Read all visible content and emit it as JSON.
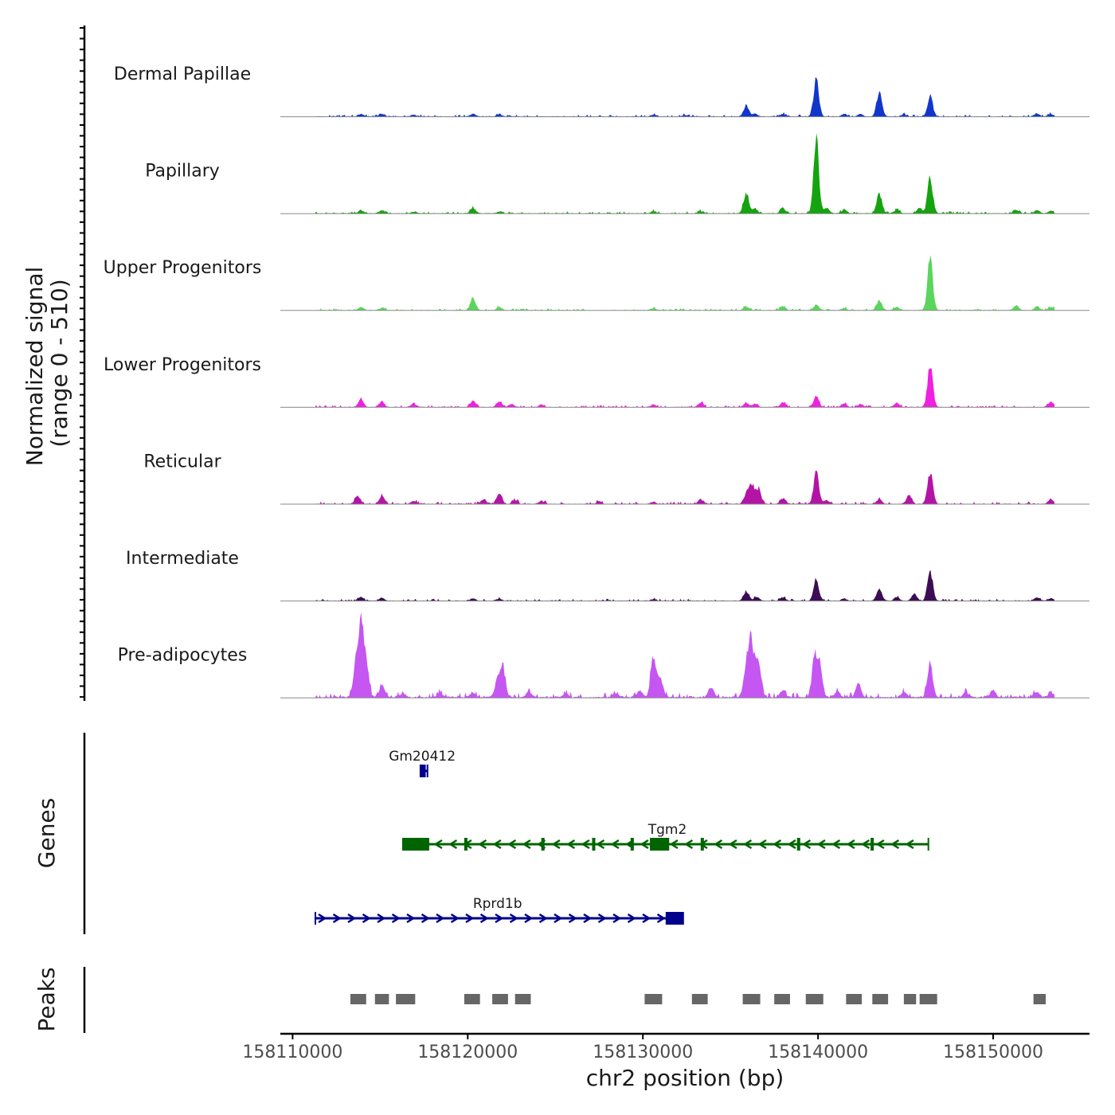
{
  "chart_data": {
    "type": "area",
    "title": "",
    "ylabel_line1": "Normalized signal",
    "ylabel_line2": "(range 0 - 510)",
    "xlabel": "chr2 position (bp)",
    "xlim": [
      158109300,
      158155500
    ],
    "x_ticks": [
      "158110000",
      "158120000",
      "158130000",
      "158140000",
      "158150000"
    ],
    "x_tick_values": [
      158110000,
      158120000,
      158130000,
      158140000,
      158150000
    ],
    "signal_range": [
      0,
      510
    ],
    "track_start": 158111300,
    "track_end": 158153500,
    "tracks": [
      {
        "name": "Dermal Papillae",
        "color": "#1236cc",
        "baseline": 0.012,
        "peaks": [
          [
            158113900,
            0.03
          ],
          [
            158115100,
            0.03
          ],
          [
            158116900,
            0.025
          ],
          [
            158120300,
            0.035
          ],
          [
            158121800,
            0.03
          ],
          [
            158130600,
            0.025
          ],
          [
            158132400,
            0.02
          ],
          [
            158135900,
            0.14
          ],
          [
            158136400,
            0.04
          ],
          [
            158138000,
            0.03
          ],
          [
            158139900,
            0.5
          ],
          [
            158141500,
            0.03
          ],
          [
            158142400,
            0.03
          ],
          [
            158143500,
            0.34
          ],
          [
            158144900,
            0.03
          ],
          [
            158146400,
            0.28
          ],
          [
            158152500,
            0.04
          ],
          [
            158153300,
            0.03
          ]
        ]
      },
      {
        "name": "Papillary",
        "color": "#15a30f",
        "baseline": 0.012,
        "peaks": [
          [
            158113900,
            0.04
          ],
          [
            158115100,
            0.04
          ],
          [
            158116900,
            0.02
          ],
          [
            158120300,
            0.07
          ],
          [
            158121800,
            0.025
          ],
          [
            158130600,
            0.03
          ],
          [
            158133300,
            0.03
          ],
          [
            158135900,
            0.28
          ],
          [
            158136400,
            0.06
          ],
          [
            158138000,
            0.06
          ],
          [
            158139900,
            0.98
          ],
          [
            158140500,
            0.08
          ],
          [
            158141500,
            0.05
          ],
          [
            158143500,
            0.26
          ],
          [
            158144500,
            0.05
          ],
          [
            158145800,
            0.07
          ],
          [
            158146400,
            0.46
          ],
          [
            158151300,
            0.05
          ],
          [
            158152500,
            0.04
          ],
          [
            158153300,
            0.04
          ]
        ]
      },
      {
        "name": "Upper Progenitors",
        "color": "#5bd55d",
        "baseline": 0.012,
        "peaks": [
          [
            158113900,
            0.04
          ],
          [
            158115100,
            0.03
          ],
          [
            158120300,
            0.17
          ],
          [
            158121800,
            0.04
          ],
          [
            158130600,
            0.025
          ],
          [
            158135900,
            0.05
          ],
          [
            158138000,
            0.05
          ],
          [
            158139900,
            0.07
          ],
          [
            158141500,
            0.03
          ],
          [
            158143500,
            0.13
          ],
          [
            158144500,
            0.04
          ],
          [
            158146400,
            0.68
          ],
          [
            158151300,
            0.06
          ],
          [
            158152500,
            0.05
          ],
          [
            158153300,
            0.04
          ]
        ]
      },
      {
        "name": "Lower Progenitors",
        "color": "#f020e0",
        "baseline": 0.012,
        "peaks": [
          [
            158113900,
            0.1
          ],
          [
            158115100,
            0.07
          ],
          [
            158116900,
            0.04
          ],
          [
            158120300,
            0.08
          ],
          [
            158121800,
            0.07
          ],
          [
            158122500,
            0.04
          ],
          [
            158124200,
            0.03
          ],
          [
            158130600,
            0.035
          ],
          [
            158133300,
            0.06
          ],
          [
            158135900,
            0.05
          ],
          [
            158136400,
            0.04
          ],
          [
            158138000,
            0.06
          ],
          [
            158139900,
            0.14
          ],
          [
            158141500,
            0.05
          ],
          [
            158142400,
            0.04
          ],
          [
            158144500,
            0.05
          ],
          [
            158146400,
            0.55
          ],
          [
            158153300,
            0.07
          ]
        ]
      },
      {
        "name": "Reticular",
        "color": "#b314a6",
        "baseline": 0.014,
        "peaks": [
          [
            158113700,
            0.1
          ],
          [
            158115100,
            0.1
          ],
          [
            158116900,
            0.04
          ],
          [
            158120900,
            0.06
          ],
          [
            158121800,
            0.14
          ],
          [
            158122700,
            0.05
          ],
          [
            158124200,
            0.04
          ],
          [
            158127500,
            0.03
          ],
          [
            158130600,
            0.03
          ],
          [
            158133300,
            0.06
          ],
          [
            158135900,
            0.12
          ],
          [
            158136200,
            0.27
          ],
          [
            158136600,
            0.2
          ],
          [
            158138000,
            0.08
          ],
          [
            158139900,
            0.42
          ],
          [
            158140500,
            0.05
          ],
          [
            158143500,
            0.06
          ],
          [
            158145200,
            0.12
          ],
          [
            158146400,
            0.42
          ],
          [
            158153300,
            0.06
          ]
        ]
      },
      {
        "name": "Intermediate",
        "color": "#3c0d55",
        "baseline": 0.012,
        "peaks": [
          [
            158113900,
            0.05
          ],
          [
            158115100,
            0.04
          ],
          [
            158120300,
            0.03
          ],
          [
            158121800,
            0.03
          ],
          [
            158130600,
            0.02
          ],
          [
            158135900,
            0.13
          ],
          [
            158136500,
            0.05
          ],
          [
            158138000,
            0.04
          ],
          [
            158139900,
            0.3
          ],
          [
            158141500,
            0.03
          ],
          [
            158143500,
            0.15
          ],
          [
            158144500,
            0.05
          ],
          [
            158145500,
            0.09
          ],
          [
            158146400,
            0.4
          ],
          [
            158152500,
            0.04
          ],
          [
            158153300,
            0.03
          ]
        ]
      },
      {
        "name": "Pre-adipocytes",
        "color": "#c556f2",
        "baseline": 0.03,
        "peaks": [
          [
            158113600,
            0.38
          ],
          [
            158113900,
            0.98
          ],
          [
            158114200,
            0.45
          ],
          [
            158115100,
            0.16
          ],
          [
            158116300,
            0.06
          ],
          [
            158118400,
            0.06
          ],
          [
            158120300,
            0.06
          ],
          [
            158121700,
            0.22
          ],
          [
            158122000,
            0.4
          ],
          [
            158123500,
            0.07
          ],
          [
            158125600,
            0.05
          ],
          [
            158128500,
            0.05
          ],
          [
            158129800,
            0.09
          ],
          [
            158130600,
            0.55
          ],
          [
            158131000,
            0.25
          ],
          [
            158133900,
            0.13
          ],
          [
            158135900,
            0.4
          ],
          [
            158136200,
            0.76
          ],
          [
            158136600,
            0.5
          ],
          [
            158138000,
            0.1
          ],
          [
            158139800,
            0.52
          ],
          [
            158140100,
            0.4
          ],
          [
            158141100,
            0.08
          ],
          [
            158142300,
            0.18
          ],
          [
            158144900,
            0.07
          ],
          [
            158146400,
            0.45
          ],
          [
            158148400,
            0.06
          ],
          [
            158150000,
            0.1
          ],
          [
            158152500,
            0.07
          ],
          [
            158153300,
            0.06
          ]
        ]
      }
    ],
    "genes_label": "Genes",
    "genes": [
      {
        "name": "Gm20412",
        "strand": "+",
        "start": 158117300,
        "end": 158117700,
        "color": "#00008b",
        "row": 1,
        "exons": [
          [
            158117300,
            158117600
          ]
        ]
      },
      {
        "name": "Tgm2",
        "strand": "-",
        "start": 158116300,
        "end": 158146300,
        "color": "#006400",
        "row": 2,
        "exons": [
          [
            158116300,
            158117800
          ],
          [
            158119800,
            158119900
          ],
          [
            158124200,
            158124350
          ],
          [
            158127100,
            158127250
          ],
          [
            158129300,
            158129400
          ],
          [
            158130400,
            158131500
          ],
          [
            158133300,
            158133450
          ],
          [
            158138800,
            158138950
          ],
          [
            158143000,
            158143150
          ]
        ]
      },
      {
        "name": "Rprd1b",
        "strand": "+",
        "start": 158111300,
        "end": 158132300,
        "color": "#00008b",
        "row": 3,
        "exons": [
          [
            158131300,
            158132300
          ]
        ]
      }
    ],
    "peaks_label": "Peaks",
    "peak_regions": [
      [
        158113300,
        158114200
      ],
      [
        158114700,
        158115500
      ],
      [
        158115900,
        158117000
      ],
      [
        158119800,
        158120700
      ],
      [
        158121400,
        158122300
      ],
      [
        158122700,
        158123600
      ],
      [
        158130100,
        158131100
      ],
      [
        158132800,
        158133700
      ],
      [
        158135700,
        158136700
      ],
      [
        158137500,
        158138400
      ],
      [
        158139300,
        158140300
      ],
      [
        158141600,
        158142500
      ],
      [
        158143100,
        158144000
      ],
      [
        158144900,
        158145600
      ],
      [
        158145800,
        158146800
      ],
      [
        158152300,
        158153000
      ]
    ]
  }
}
